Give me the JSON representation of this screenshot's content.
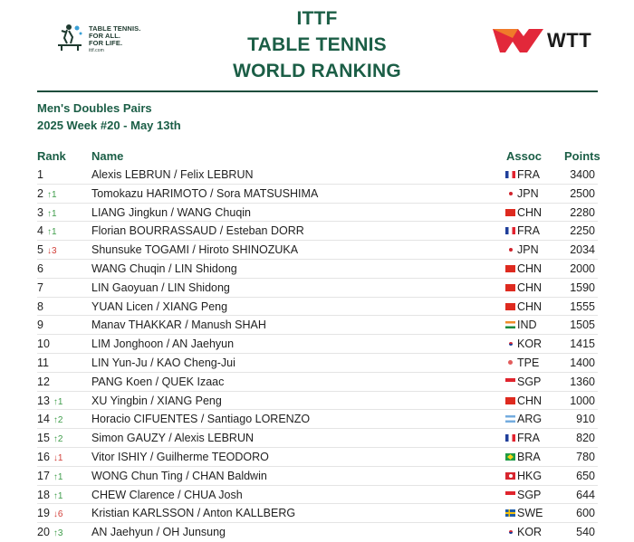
{
  "header": {
    "title_lines": [
      "ITTF",
      "TABLE TENNIS",
      "WORLD RANKING"
    ],
    "ittf_tagline": [
      "TABLE TENNIS.",
      "FOR ALL.",
      "FOR LIFE.",
      "ittf.com"
    ],
    "wtt_logo_text": "WTT",
    "accent_color": "#1b5e46",
    "wtt_red": "#e2283a"
  },
  "subtitle": {
    "category": "Men's Doubles Pairs",
    "week": "2025 Week #20 - May 13th"
  },
  "table": {
    "headers": {
      "rank": "Rank",
      "name": "Name",
      "assoc": "Assoc",
      "points": "Points"
    },
    "rows": [
      {
        "rank": "1",
        "change": "",
        "dir": "",
        "name": "Alexis LEBRUN / Felix LEBRUN",
        "flag": "fra",
        "assoc": "FRA",
        "points": "3400"
      },
      {
        "rank": "2",
        "change": "↑1",
        "dir": "up",
        "name": "Tomokazu HARIMOTO / Sora MATSUSHIMA",
        "flag": "jpn",
        "assoc": "JPN",
        "points": "2500"
      },
      {
        "rank": "3",
        "change": "↑1",
        "dir": "up",
        "name": "LIANG Jingkun / WANG Chuqin",
        "flag": "chn",
        "assoc": "CHN",
        "points": "2280"
      },
      {
        "rank": "4",
        "change": "↑1",
        "dir": "up",
        "name": "Florian BOURRASSAUD / Esteban DORR",
        "flag": "fra",
        "assoc": "FRA",
        "points": "2250"
      },
      {
        "rank": "5",
        "change": "↓3",
        "dir": "down",
        "name": "Shunsuke TOGAMI / Hiroto SHINOZUKA",
        "flag": "jpn",
        "assoc": "JPN",
        "points": "2034"
      },
      {
        "rank": "6",
        "change": "",
        "dir": "",
        "name": "WANG Chuqin / LIN Shidong",
        "flag": "chn",
        "assoc": "CHN",
        "points": "2000"
      },
      {
        "rank": "7",
        "change": "",
        "dir": "",
        "name": "LIN Gaoyuan / LIN Shidong",
        "flag": "chn",
        "assoc": "CHN",
        "points": "1590"
      },
      {
        "rank": "8",
        "change": "",
        "dir": "",
        "name": "YUAN Licen / XIANG Peng",
        "flag": "chn",
        "assoc": "CHN",
        "points": "1555"
      },
      {
        "rank": "9",
        "change": "",
        "dir": "",
        "name": "Manav THAKKAR / Manush SHAH",
        "flag": "ind",
        "assoc": "IND",
        "points": "1505"
      },
      {
        "rank": "10",
        "change": "",
        "dir": "",
        "name": "LIM Jonghoon / AN Jaehyun",
        "flag": "kor",
        "assoc": "KOR",
        "points": "1415"
      },
      {
        "rank": "11",
        "change": "",
        "dir": "",
        "name": "LIN Yun-Ju / KAO Cheng-Jui",
        "flag": "tpe",
        "assoc": "TPE",
        "points": "1400"
      },
      {
        "rank": "12",
        "change": "",
        "dir": "",
        "name": "PANG Koen / QUEK Izaac",
        "flag": "sgp",
        "assoc": "SGP",
        "points": "1360"
      },
      {
        "rank": "13",
        "change": "↑1",
        "dir": "up",
        "name": "XU Yingbin / XIANG Peng",
        "flag": "chn",
        "assoc": "CHN",
        "points": "1000"
      },
      {
        "rank": "14",
        "change": "↑2",
        "dir": "up",
        "name": "Horacio CIFUENTES / Santiago LORENZO",
        "flag": "arg",
        "assoc": "ARG",
        "points": "910"
      },
      {
        "rank": "15",
        "change": "↑2",
        "dir": "up",
        "name": "Simon GAUZY / Alexis LEBRUN",
        "flag": "fra",
        "assoc": "FRA",
        "points": "820"
      },
      {
        "rank": "16",
        "change": "↓1",
        "dir": "down",
        "name": "Vitor ISHIY / Guilherme TEODORO",
        "flag": "bra",
        "assoc": "BRA",
        "points": "780"
      },
      {
        "rank": "17",
        "change": "↑1",
        "dir": "up",
        "name": "WONG Chun Ting / CHAN Baldwin",
        "flag": "hkg",
        "assoc": "HKG",
        "points": "650"
      },
      {
        "rank": "18",
        "change": "↑1",
        "dir": "up",
        "name": "CHEW Clarence / CHUA Josh",
        "flag": "sgp",
        "assoc": "SGP",
        "points": "644"
      },
      {
        "rank": "19",
        "change": "↓6",
        "dir": "down",
        "name": "Kristian KARLSSON / Anton KALLBERG",
        "flag": "swe",
        "assoc": "SWE",
        "points": "600"
      },
      {
        "rank": "20",
        "change": "↑3",
        "dir": "up",
        "name": "AN Jaehyun / OH Junsung",
        "flag": "kor",
        "assoc": "KOR",
        "points": "540"
      }
    ]
  }
}
